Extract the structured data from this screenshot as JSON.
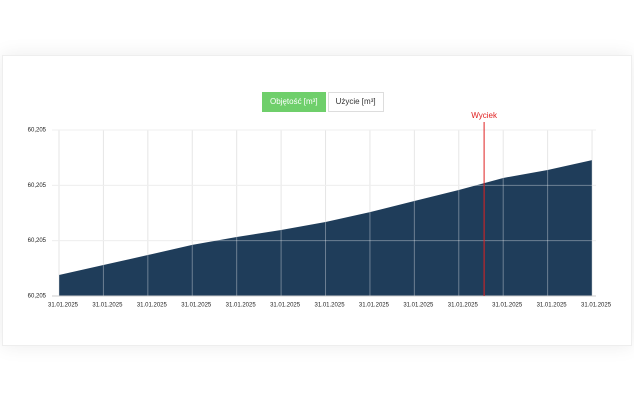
{
  "toggle": {
    "options": [
      "Objętość [m³]",
      "Użycie [m³]"
    ]
  },
  "chart_data": {
    "type": "area",
    "color": "#1f3d5a",
    "grid": true,
    "categories": [
      "31.01.2025",
      "31.01.2025",
      "31.01.2025",
      "31.01.2025",
      "31.01.2025",
      "31.01.2025",
      "31.01.2025",
      "31.01.2025",
      "31.01.2025",
      "31.01.2025",
      "31.01.2025",
      "31.01.2025",
      "31.01.2025"
    ],
    "values": [
      60.204664,
      60.204718,
      60.204772,
      60.204827,
      60.20487,
      60.204908,
      60.204951,
      60.205005,
      60.205065,
      60.205125,
      60.20519,
      60.205233,
      60.205287
    ],
    "ylim": [
      60.20455,
      60.20545
    ],
    "yticks": [
      {
        "value": 60.20455,
        "label": "60,205"
      },
      {
        "value": 60.20485,
        "label": "60,205"
      },
      {
        "value": 60.20515,
        "label": "60,205"
      },
      {
        "value": 60.20545,
        "label": "60,205"
      }
    ],
    "annotation": {
      "text": "Wyciek",
      "x": 9.57,
      "color": "#e02020"
    }
  }
}
